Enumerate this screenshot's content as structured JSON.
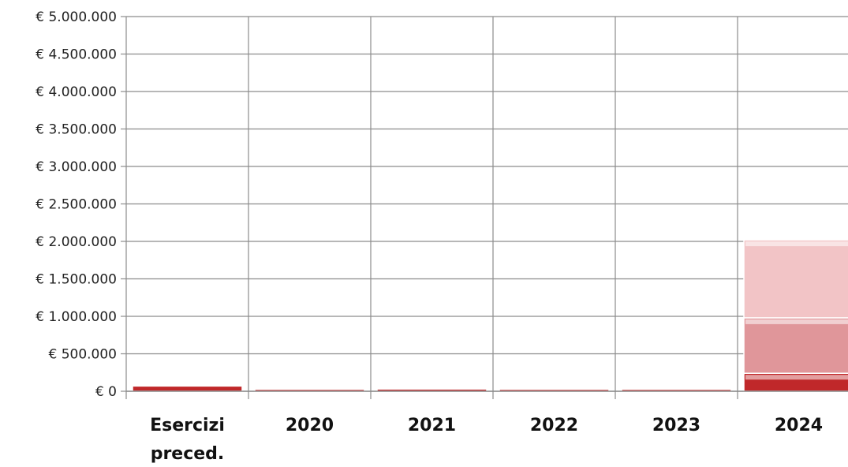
{
  "chart_data": {
    "type": "bar",
    "stacked": true,
    "categories": [
      "Esercizi preced.",
      "2020",
      "2021",
      "2022",
      "2023",
      "2024"
    ],
    "series": [
      {
        "color": "#c0282a",
        "values": [
          70000,
          20000,
          30000,
          20000,
          20000,
          240000
        ]
      },
      {
        "color": "#e0969a",
        "values": [
          0,
          0,
          0,
          0,
          0,
          740000
        ]
      },
      {
        "color": "#f2c4c6",
        "values": [
          0,
          0,
          0,
          0,
          0,
          1040000
        ]
      }
    ],
    "ylim": [
      0,
      5000000
    ],
    "yticks": [
      "€ 0",
      "€ 500.000",
      "€ 1.000.000",
      "€ 1.500.000",
      "€ 2.000.000",
      "€ 2.500.000",
      "€ 3.000.000",
      "€ 3.500.000",
      "€ 4.000.000",
      "€ 4.500.000",
      "€ 5.000.000"
    ],
    "ytick_values": [
      0,
      500000,
      1000000,
      1500000,
      2000000,
      2500000,
      3000000,
      3500000,
      4000000,
      4500000,
      5000000
    ],
    "grid": true,
    "title": "",
    "xlabel": "",
    "ylabel": ""
  }
}
